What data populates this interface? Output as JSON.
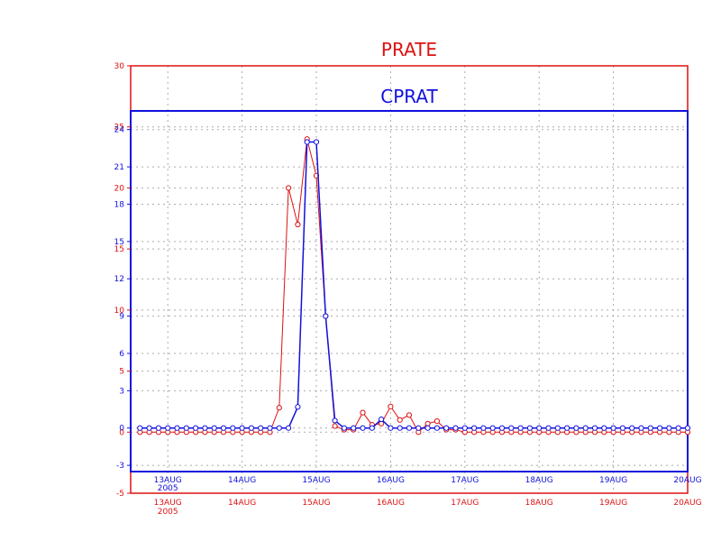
{
  "chart_data": [
    {
      "type": "line",
      "title": "PRATE",
      "color": "#dd1111",
      "ylim": [
        -5,
        30
      ],
      "yticks": [
        -5,
        0,
        5,
        10,
        15,
        20,
        25,
        30
      ],
      "xlim": [
        0,
        7.5
      ],
      "xticks": [
        {
          "pos": 0.5,
          "label": "13AUG",
          "sublabel": "2005"
        },
        {
          "pos": 1.5,
          "label": "14AUG"
        },
        {
          "pos": 2.5,
          "label": "15AUG"
        },
        {
          "pos": 3.5,
          "label": "16AUG"
        },
        {
          "pos": 4.5,
          "label": "17AUG"
        },
        {
          "pos": 5.5,
          "label": "18AUG"
        },
        {
          "pos": 6.5,
          "label": "19AUG"
        },
        {
          "pos": 7.5,
          "label": "20AUG"
        }
      ],
      "grid": true,
      "x": [
        0.125,
        0.25,
        0.375,
        0.5,
        0.625,
        0.75,
        0.875,
        1.0,
        1.125,
        1.25,
        1.375,
        1.5,
        1.625,
        1.75,
        1.875,
        2.0,
        2.125,
        2.25,
        2.375,
        2.5,
        2.625,
        2.75,
        2.875,
        3.0,
        3.125,
        3.25,
        3.375,
        3.5,
        3.625,
        3.75,
        3.875,
        4.0,
        4.125,
        4.25,
        4.375,
        4.5,
        4.625,
        4.75,
        4.875,
        5.0,
        5.125,
        5.25,
        5.375,
        5.5,
        5.625,
        5.75,
        5.875,
        6.0,
        6.125,
        6.25,
        6.375,
        6.5,
        6.625,
        6.75,
        6.875,
        7.0,
        7.125,
        7.25,
        7.375,
        7.5
      ],
      "values": [
        0,
        0,
        0,
        0,
        0,
        0,
        0,
        0,
        0,
        0,
        0,
        0,
        0,
        0,
        0,
        2,
        20,
        17,
        24,
        21,
        9.5,
        0.5,
        0.2,
        0.2,
        1.6,
        0.6,
        0.7,
        2.1,
        1.0,
        1.4,
        0,
        0.7,
        0.9,
        0.2,
        0.2,
        0,
        0,
        0,
        0,
        0,
        0,
        0,
        0,
        0,
        0,
        0,
        0,
        0,
        0,
        0,
        0,
        0,
        0,
        0,
        0,
        0,
        0,
        0,
        0,
        0
      ]
    },
    {
      "type": "line",
      "title": "CPRAT",
      "color": "#1111dd",
      "ylim": [
        -3.5,
        25.5
      ],
      "yticks": [
        -3,
        0,
        3,
        6,
        9,
        12,
        15,
        18,
        21,
        24
      ],
      "xlim": [
        0,
        7.5
      ],
      "xticks": [
        {
          "pos": 0.5,
          "label": "13AUG",
          "sublabel": "2005"
        },
        {
          "pos": 1.5,
          "label": "14AUG"
        },
        {
          "pos": 2.5,
          "label": "15AUG"
        },
        {
          "pos": 3.5,
          "label": "16AUG"
        },
        {
          "pos": 4.5,
          "label": "17AUG"
        },
        {
          "pos": 5.5,
          "label": "18AUG"
        },
        {
          "pos": 6.5,
          "label": "19AUG"
        },
        {
          "pos": 7.5,
          "label": "20AUG"
        }
      ],
      "grid": true,
      "x": [
        0.125,
        0.25,
        0.375,
        0.5,
        0.625,
        0.75,
        0.875,
        1.0,
        1.125,
        1.25,
        1.375,
        1.5,
        1.625,
        1.75,
        1.875,
        2.0,
        2.125,
        2.25,
        2.375,
        2.5,
        2.625,
        2.75,
        2.875,
        3.0,
        3.125,
        3.25,
        3.375,
        3.5,
        3.625,
        3.75,
        3.875,
        4.0,
        4.125,
        4.25,
        4.375,
        4.5,
        4.625,
        4.75,
        4.875,
        5.0,
        5.125,
        5.25,
        5.375,
        5.5,
        5.625,
        5.75,
        5.875,
        6.0,
        6.125,
        6.25,
        6.375,
        6.5,
        6.625,
        6.75,
        6.875,
        7.0,
        7.125,
        7.25,
        7.375,
        7.5
      ],
      "values": [
        0,
        0,
        0,
        0,
        0,
        0,
        0,
        0,
        0,
        0,
        0,
        0,
        0,
        0,
        0,
        0,
        0,
        1.7,
        23,
        23,
        9,
        0.6,
        0,
        0,
        0,
        0,
        0.7,
        0,
        0,
        0,
        0,
        0,
        0,
        0,
        0,
        0,
        0,
        0,
        0,
        0,
        0,
        0,
        0,
        0,
        0,
        0,
        0,
        0,
        0,
        0,
        0,
        0,
        0,
        0,
        0,
        0,
        0,
        0,
        0,
        0
      ]
    }
  ]
}
